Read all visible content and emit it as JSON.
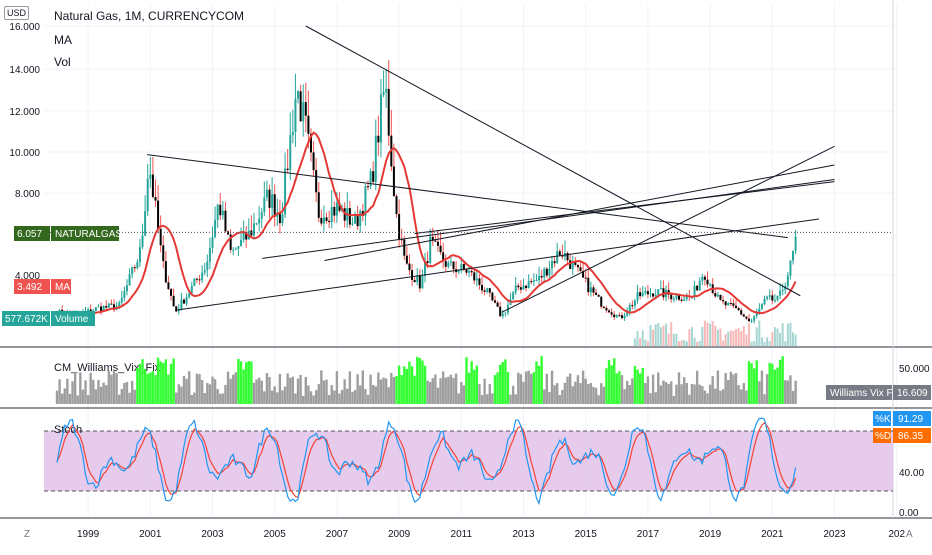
{
  "header": {
    "currency": "USD",
    "title": "Natural Gas, 1M, CURRENCYCOM",
    "indicator_ma": "MA",
    "indicator_vol": "Vol"
  },
  "colors": {
    "up": "#26a69a",
    "down": "#ef5350",
    "candle_body": "#000000",
    "ma": "#e53935",
    "trendline": "#131722",
    "vix_normal": "#9e9e9e",
    "vix_high": "#33ff33",
    "stoch_k": "#2196f3",
    "stoch_d": "#f44336",
    "stoch_band": "#e1bee7",
    "price_label": "#33691e",
    "ma_label": "#ef5350",
    "volume_label": "#26a69a",
    "k_label": "#2196f3",
    "d_label": "#ff6d00"
  },
  "chart_data": [
    {
      "type": "candlestick",
      "title": "Natural Gas, 1M, CURRENCYCOM",
      "x_ticks": [
        "1999",
        "2001",
        "2003",
        "2005",
        "2007",
        "2009",
        "2011",
        "2013",
        "2015",
        "2017",
        "2019",
        "2021",
        "2023",
        "202"
      ],
      "y_ticks": [
        "16.000",
        "14.000",
        "12.000",
        "10.000",
        "8.000",
        "4.000"
      ],
      "ylim": [
        1.5,
        16.5
      ],
      "last_price": "6.057",
      "last_price_label": "NATURALGAS",
      "ma_value": "3.492",
      "ma_label": "MA",
      "volume_value": "577.672K",
      "volume_label": "Volume",
      "anchors": [
        {
          "year": 1998.0,
          "price": 2.2
        },
        {
          "year": 1998.6,
          "price": 2.0
        },
        {
          "year": 1999.3,
          "price": 2.4
        },
        {
          "year": 2000.0,
          "price": 2.5
        },
        {
          "year": 2000.7,
          "price": 5.2
        },
        {
          "year": 2000.95,
          "price": 9.5
        },
        {
          "year": 2001.4,
          "price": 4.5
        },
        {
          "year": 2001.8,
          "price": 2.2
        },
        {
          "year": 2002.3,
          "price": 3.3
        },
        {
          "year": 2002.8,
          "price": 4.5
        },
        {
          "year": 2003.2,
          "price": 7.5
        },
        {
          "year": 2003.6,
          "price": 5.0
        },
        {
          "year": 2004.2,
          "price": 6.0
        },
        {
          "year": 2004.8,
          "price": 7.8
        },
        {
          "year": 2005.2,
          "price": 6.8
        },
        {
          "year": 2005.7,
          "price": 13.0
        },
        {
          "year": 2006.0,
          "price": 11.0
        },
        {
          "year": 2006.4,
          "price": 7.0
        },
        {
          "year": 2007.0,
          "price": 7.2
        },
        {
          "year": 2007.6,
          "price": 6.5
        },
        {
          "year": 2008.1,
          "price": 8.5
        },
        {
          "year": 2008.55,
          "price": 13.2
        },
        {
          "year": 2008.9,
          "price": 7.0
        },
        {
          "year": 2009.2,
          "price": 4.5
        },
        {
          "year": 2009.7,
          "price": 3.5
        },
        {
          "year": 2010.0,
          "price": 5.5
        },
        {
          "year": 2010.6,
          "price": 4.4
        },
        {
          "year": 2011.2,
          "price": 4.2
        },
        {
          "year": 2011.8,
          "price": 3.2
        },
        {
          "year": 2012.3,
          "price": 2.0
        },
        {
          "year": 2012.8,
          "price": 3.4
        },
        {
          "year": 2013.5,
          "price": 3.8
        },
        {
          "year": 2014.2,
          "price": 5.2
        },
        {
          "year": 2014.8,
          "price": 4.0
        },
        {
          "year": 2015.4,
          "price": 2.8
        },
        {
          "year": 2016.1,
          "price": 1.9
        },
        {
          "year": 2016.7,
          "price": 3.0
        },
        {
          "year": 2017.2,
          "price": 3.2
        },
        {
          "year": 2017.8,
          "price": 3.0
        },
        {
          "year": 2018.4,
          "price": 2.9
        },
        {
          "year": 2018.8,
          "price": 4.2
        },
        {
          "year": 2019.3,
          "price": 2.7
        },
        {
          "year": 2019.9,
          "price": 2.3
        },
        {
          "year": 2020.3,
          "price": 1.7
        },
        {
          "year": 2020.8,
          "price": 2.8
        },
        {
          "year": 2021.2,
          "price": 2.8
        },
        {
          "year": 2021.6,
          "price": 4.5
        },
        {
          "year": 2021.8,
          "price": 6.0
        }
      ]
    },
    {
      "type": "bar",
      "title": "CM_Williams_Vix_Fix",
      "y_ticks": [
        "50.000"
      ],
      "last_value": "16.609",
      "last_value_label": "Williams Vix Fix"
    },
    {
      "type": "line",
      "title": "Stoch",
      "y_ticks": [
        "80.00",
        "40.00",
        "0.00"
      ],
      "ylim": [
        0,
        100
      ],
      "bands": [
        20,
        80
      ],
      "k_label": "%K",
      "k_value": "91.29",
      "d_label": "%D",
      "d_value": "86.35"
    }
  ],
  "bottom_bar": {
    "left_label": "Z",
    "right_label": "A"
  }
}
